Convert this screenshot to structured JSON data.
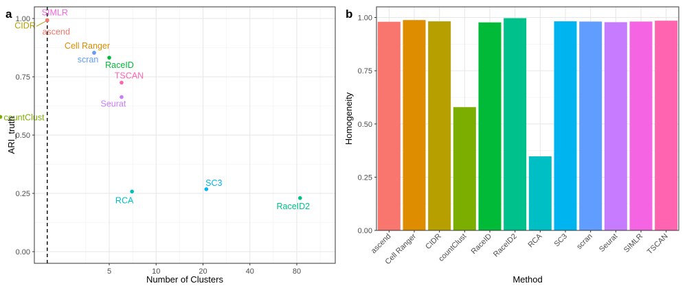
{
  "chart_data": [
    {
      "panel": "a",
      "type": "scatter",
      "xlabel": "Number of Clusters",
      "ylabel": "ARI_truth",
      "x_ticks": [
        "5",
        "10",
        "20",
        "40",
        "80"
      ],
      "y_ticks": [
        "0.00",
        "0.25",
        "0.50",
        "0.75",
        "1.00"
      ],
      "ylim": [
        -0.05,
        1.05
      ],
      "grid": true,
      "reference_line": {
        "style": "dashed",
        "x": 2
      },
      "points": [
        {
          "label": "SIMLR",
          "x": 2,
          "y": 0.993,
          "color": "#F564E3"
        },
        {
          "label": "CIDR",
          "x": 2,
          "y": 0.993,
          "color": "#B79F00"
        },
        {
          "label": "ascend",
          "x": 2,
          "y": 0.993,
          "color": "#F8766D"
        },
        {
          "label": "Cell Ranger",
          "x": 4,
          "y": 0.853,
          "color": "#DE8C00"
        },
        {
          "label": "scran",
          "x": 4,
          "y": 0.853,
          "color": "#619CFF"
        },
        {
          "label": "RaceID",
          "x": 5,
          "y": 0.832,
          "color": "#00BA38"
        },
        {
          "label": "TSCAN",
          "x": 6,
          "y": 0.725,
          "color": "#FF64B0"
        },
        {
          "label": "Seurat",
          "x": 6,
          "y": 0.663,
          "color": "#C77CFF"
        },
        {
          "label": "countClust",
          "x": 1,
          "y": 0.578,
          "color": "#7CAE00"
        },
        {
          "label": "RCA",
          "x": 7,
          "y": 0.258,
          "color": "#00BFC4"
        },
        {
          "label": "SC3",
          "x": 21,
          "y": 0.268,
          "color": "#00B4F0"
        },
        {
          "label": "RaceID2",
          "x": 84,
          "y": 0.23,
          "color": "#00C08B"
        }
      ]
    },
    {
      "panel": "b",
      "type": "bar",
      "xlabel": "Method",
      "ylabel": "Homogeneity",
      "y_ticks": [
        "0.00",
        "0.25",
        "0.50",
        "0.75",
        "1.00"
      ],
      "ylim": [
        0,
        1.05
      ],
      "grid": true,
      "categories": [
        "ascend",
        "Cell Ranger",
        "CIDR",
        "countClust",
        "RaceID",
        "RaceID2",
        "RCA",
        "SC3",
        "scran",
        "Seurat",
        "SIMLR",
        "TSCAN"
      ],
      "values": [
        0.98,
        0.988,
        0.982,
        0.579,
        0.977,
        0.997,
        0.348,
        0.982,
        0.981,
        0.978,
        0.981,
        0.985
      ],
      "colors": [
        "#F8766D",
        "#DE8C00",
        "#B79F00",
        "#7CAE00",
        "#00BA38",
        "#00C08B",
        "#00BFC4",
        "#00B4F0",
        "#619CFF",
        "#C77CFF",
        "#F564E3",
        "#FF64B0"
      ]
    }
  ]
}
